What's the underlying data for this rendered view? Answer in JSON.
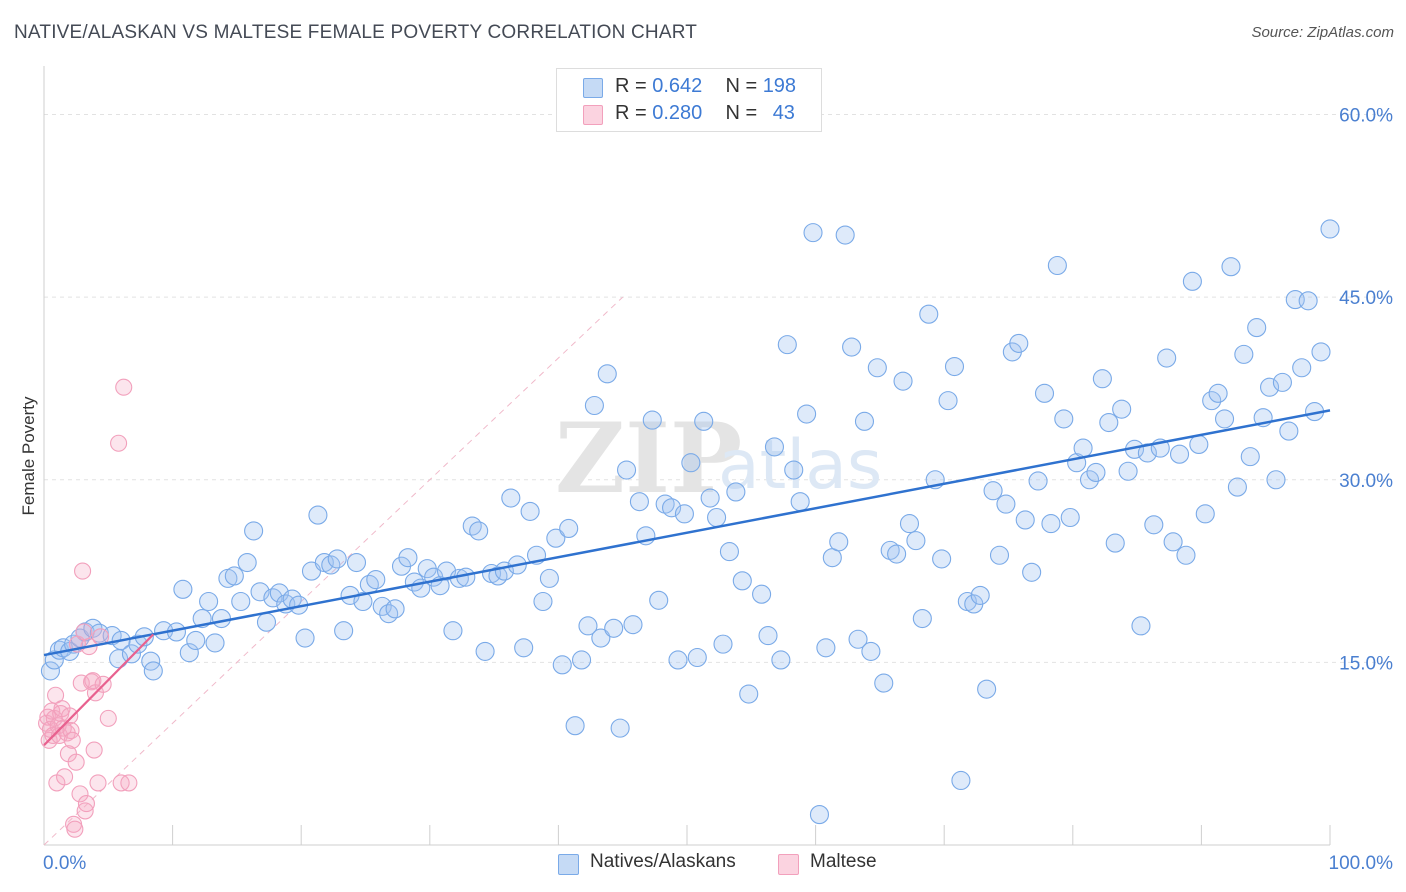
{
  "title": "NATIVE/ALASKAN VS MALTESE FEMALE POVERTY CORRELATION CHART",
  "source": "Source: ZipAtlas.com",
  "watermark": {
    "zip": "ZIP",
    "atlas": "atlas"
  },
  "colors": {
    "blue": "#7aaae8",
    "blue_line": "#2f72cf",
    "pink": "#f2a0bc",
    "pink_line": "#e8618f",
    "accent_text": "#3d7ad4"
  },
  "legend": {
    "rows": [
      {
        "r_label": "R =",
        "r_value": "0.642",
        "n_label": "N =",
        "n_value": "198"
      },
      {
        "r_label": "R =",
        "r_value": "0.280",
        "n_label": "N =",
        "n_value": "43"
      }
    ]
  },
  "chart_data": {
    "type": "scatter",
    "title": "NATIVE/ALASKAN VS MALTESE FEMALE POVERTY CORRELATION CHART",
    "xlabel": "",
    "ylabel": "Female Poverty",
    "xlim": [
      0,
      100
    ],
    "ylim": [
      0,
      63
    ],
    "x_tick_labels": [
      "0.0%",
      "100.0%"
    ],
    "y_ticks": [
      15,
      30,
      45,
      60
    ],
    "y_tick_labels": [
      "15.0%",
      "30.0%",
      "45.0%",
      "60.0%"
    ],
    "grid": true,
    "legend_position": "bottom-center",
    "series": [
      {
        "name": "Natives/Alaskans",
        "color": "#7aaae8",
        "trend": {
          "x": [
            0,
            100
          ],
          "y": [
            15.6,
            35.7
          ]
        },
        "points": [
          [
            0.5,
            14.3
          ],
          [
            0.8,
            15.2
          ],
          [
            1.2,
            16.0
          ],
          [
            1.5,
            16.2
          ],
          [
            2.0,
            15.9
          ],
          [
            2.3,
            16.5
          ],
          [
            2.8,
            17.0
          ],
          [
            3.2,
            17.5
          ],
          [
            3.8,
            17.8
          ],
          [
            4.3,
            17.4
          ],
          [
            5.3,
            17.2
          ],
          [
            5.8,
            15.3
          ],
          [
            6.0,
            16.8
          ],
          [
            6.8,
            15.7
          ],
          [
            7.3,
            16.5
          ],
          [
            7.8,
            17.1
          ],
          [
            8.3,
            15.1
          ],
          [
            8.5,
            14.3
          ],
          [
            9.3,
            17.6
          ],
          [
            10.3,
            17.5
          ],
          [
            10.8,
            21.0
          ],
          [
            11.3,
            15.8
          ],
          [
            11.8,
            16.8
          ],
          [
            12.3,
            18.6
          ],
          [
            12.8,
            20.0
          ],
          [
            13.3,
            16.6
          ],
          [
            13.8,
            18.6
          ],
          [
            14.3,
            21.9
          ],
          [
            14.8,
            22.1
          ],
          [
            15.3,
            20.0
          ],
          [
            15.8,
            23.2
          ],
          [
            16.3,
            25.8
          ],
          [
            16.8,
            20.8
          ],
          [
            17.3,
            18.3
          ],
          [
            17.8,
            20.3
          ],
          [
            18.3,
            20.7
          ],
          [
            18.8,
            19.8
          ],
          [
            19.3,
            20.2
          ],
          [
            19.8,
            19.7
          ],
          [
            20.3,
            17.0
          ],
          [
            20.8,
            22.5
          ],
          [
            21.3,
            27.1
          ],
          [
            21.8,
            23.2
          ],
          [
            22.3,
            23.0
          ],
          [
            22.8,
            23.5
          ],
          [
            23.3,
            17.6
          ],
          [
            23.8,
            20.5
          ],
          [
            24.3,
            23.2
          ],
          [
            24.8,
            20.0
          ],
          [
            25.3,
            21.4
          ],
          [
            25.8,
            21.8
          ],
          [
            26.3,
            19.6
          ],
          [
            26.8,
            19.0
          ],
          [
            27.3,
            19.4
          ],
          [
            27.8,
            22.9
          ],
          [
            28.3,
            23.6
          ],
          [
            28.8,
            21.6
          ],
          [
            29.3,
            21.1
          ],
          [
            29.8,
            22.7
          ],
          [
            30.3,
            22.0
          ],
          [
            30.8,
            21.3
          ],
          [
            31.3,
            22.5
          ],
          [
            31.8,
            17.6
          ],
          [
            32.3,
            21.9
          ],
          [
            32.8,
            22.0
          ],
          [
            33.3,
            26.2
          ],
          [
            33.8,
            25.8
          ],
          [
            34.3,
            15.9
          ],
          [
            34.8,
            22.3
          ],
          [
            35.3,
            22.1
          ],
          [
            35.8,
            22.5
          ],
          [
            36.3,
            28.5
          ],
          [
            36.8,
            23.0
          ],
          [
            37.3,
            16.2
          ],
          [
            37.8,
            27.4
          ],
          [
            38.3,
            23.8
          ],
          [
            38.8,
            20.0
          ],
          [
            39.3,
            21.9
          ],
          [
            39.8,
            25.2
          ],
          [
            40.3,
            14.8
          ],
          [
            40.8,
            26.0
          ],
          [
            41.3,
            9.8
          ],
          [
            41.8,
            15.2
          ],
          [
            42.3,
            18.0
          ],
          [
            42.8,
            36.1
          ],
          [
            43.3,
            17.0
          ],
          [
            43.8,
            38.7
          ],
          [
            44.3,
            17.8
          ],
          [
            44.8,
            9.6
          ],
          [
            45.3,
            30.8
          ],
          [
            45.8,
            18.1
          ],
          [
            46.3,
            28.2
          ],
          [
            46.8,
            25.4
          ],
          [
            47.3,
            34.9
          ],
          [
            47.8,
            20.1
          ],
          [
            48.3,
            28.0
          ],
          [
            48.8,
            27.7
          ],
          [
            49.3,
            15.2
          ],
          [
            49.8,
            27.2
          ],
          [
            50.3,
            31.4
          ],
          [
            50.8,
            15.4
          ],
          [
            51.3,
            34.8
          ],
          [
            51.8,
            28.5
          ],
          [
            52.3,
            26.9
          ],
          [
            52.8,
            16.5
          ],
          [
            53.3,
            24.1
          ],
          [
            53.8,
            29.0
          ],
          [
            54.3,
            21.7
          ],
          [
            54.8,
            12.4
          ],
          [
            55.8,
            20.6
          ],
          [
            56.3,
            17.2
          ],
          [
            56.8,
            32.7
          ],
          [
            57.3,
            15.2
          ],
          [
            57.8,
            41.1
          ],
          [
            58.3,
            30.8
          ],
          [
            58.8,
            28.2
          ],
          [
            59.3,
            35.4
          ],
          [
            59.8,
            50.3
          ],
          [
            60.3,
            2.5
          ],
          [
            60.8,
            16.2
          ],
          [
            61.3,
            23.6
          ],
          [
            61.8,
            24.9
          ],
          [
            62.3,
            50.1
          ],
          [
            62.8,
            40.9
          ],
          [
            63.3,
            16.9
          ],
          [
            63.8,
            34.8
          ],
          [
            64.3,
            15.9
          ],
          [
            64.8,
            39.2
          ],
          [
            65.3,
            13.3
          ],
          [
            65.8,
            24.2
          ],
          [
            66.3,
            23.9
          ],
          [
            66.8,
            38.1
          ],
          [
            67.3,
            26.4
          ],
          [
            67.8,
            25.0
          ],
          [
            68.3,
            18.6
          ],
          [
            68.8,
            43.6
          ],
          [
            69.3,
            30.0
          ],
          [
            69.8,
            23.5
          ],
          [
            70.3,
            36.5
          ],
          [
            70.8,
            39.3
          ],
          [
            71.3,
            5.3
          ],
          [
            71.8,
            20.0
          ],
          [
            72.3,
            19.8
          ],
          [
            72.8,
            20.5
          ],
          [
            73.3,
            12.8
          ],
          [
            73.8,
            29.1
          ],
          [
            74.3,
            23.8
          ],
          [
            74.8,
            28.0
          ],
          [
            75.3,
            40.5
          ],
          [
            75.8,
            41.2
          ],
          [
            76.3,
            26.7
          ],
          [
            76.8,
            22.4
          ],
          [
            77.3,
            29.9
          ],
          [
            77.8,
            37.1
          ],
          [
            78.3,
            26.4
          ],
          [
            78.8,
            47.6
          ],
          [
            79.3,
            35.0
          ],
          [
            79.8,
            26.9
          ],
          [
            80.3,
            31.4
          ],
          [
            80.8,
            32.6
          ],
          [
            81.3,
            30.0
          ],
          [
            81.8,
            30.6
          ],
          [
            82.3,
            38.3
          ],
          [
            82.8,
            34.7
          ],
          [
            83.3,
            24.8
          ],
          [
            83.8,
            35.8
          ],
          [
            84.3,
            30.7
          ],
          [
            84.8,
            32.5
          ],
          [
            85.3,
            18.0
          ],
          [
            85.8,
            32.2
          ],
          [
            86.3,
            26.3
          ],
          [
            86.8,
            32.6
          ],
          [
            87.3,
            40.0
          ],
          [
            87.8,
            24.9
          ],
          [
            88.3,
            32.1
          ],
          [
            88.8,
            23.8
          ],
          [
            89.3,
            46.3
          ],
          [
            89.8,
            32.9
          ],
          [
            90.3,
            27.2
          ],
          [
            90.8,
            36.5
          ],
          [
            91.3,
            37.1
          ],
          [
            91.8,
            35.0
          ],
          [
            92.3,
            47.5
          ],
          [
            92.8,
            29.4
          ],
          [
            93.3,
            40.3
          ],
          [
            93.8,
            31.9
          ],
          [
            94.3,
            42.5
          ],
          [
            94.8,
            35.1
          ],
          [
            95.3,
            37.6
          ],
          [
            95.8,
            30.0
          ],
          [
            96.3,
            38.0
          ],
          [
            96.8,
            34.0
          ],
          [
            97.3,
            44.8
          ],
          [
            97.8,
            39.2
          ],
          [
            98.3,
            44.7
          ],
          [
            98.8,
            35.6
          ],
          [
            99.3,
            40.5
          ],
          [
            100.0,
            50.6
          ]
        ]
      },
      {
        "name": "Maltese",
        "color": "#f2a0bc",
        "trend": {
          "x": [
            0,
            8.5
          ],
          "y": [
            8.2,
            17.3
          ]
        },
        "points": [
          [
            0.2,
            10.0
          ],
          [
            0.3,
            10.5
          ],
          [
            0.4,
            8.6
          ],
          [
            0.5,
            9.5
          ],
          [
            0.6,
            11.0
          ],
          [
            0.7,
            9.0
          ],
          [
            0.8,
            10.4
          ],
          [
            0.9,
            12.3
          ],
          [
            1.0,
            5.1
          ],
          [
            1.1,
            9.8
          ],
          [
            1.2,
            9.0
          ],
          [
            1.3,
            10.8
          ],
          [
            1.4,
            11.2
          ],
          [
            1.5,
            9.6
          ],
          [
            1.6,
            5.6
          ],
          [
            1.8,
            9.2
          ],
          [
            1.9,
            7.5
          ],
          [
            2.0,
            10.6
          ],
          [
            2.1,
            9.4
          ],
          [
            2.2,
            8.6
          ],
          [
            2.3,
            1.7
          ],
          [
            2.4,
            1.3
          ],
          [
            2.5,
            6.8
          ],
          [
            2.6,
            16.5
          ],
          [
            2.8,
            4.2
          ],
          [
            2.9,
            13.3
          ],
          [
            3.0,
            22.5
          ],
          [
            3.1,
            17.5
          ],
          [
            3.2,
            2.8
          ],
          [
            3.3,
            3.4
          ],
          [
            3.5,
            16.3
          ],
          [
            3.7,
            13.4
          ],
          [
            3.8,
            13.5
          ],
          [
            3.9,
            7.8
          ],
          [
            4.0,
            12.5
          ],
          [
            4.2,
            5.1
          ],
          [
            4.4,
            17.1
          ],
          [
            4.6,
            13.2
          ],
          [
            5.0,
            10.4
          ],
          [
            5.8,
            33.0
          ],
          [
            6.0,
            5.1
          ],
          [
            6.2,
            37.6
          ],
          [
            6.6,
            5.1
          ]
        ]
      }
    ]
  }
}
